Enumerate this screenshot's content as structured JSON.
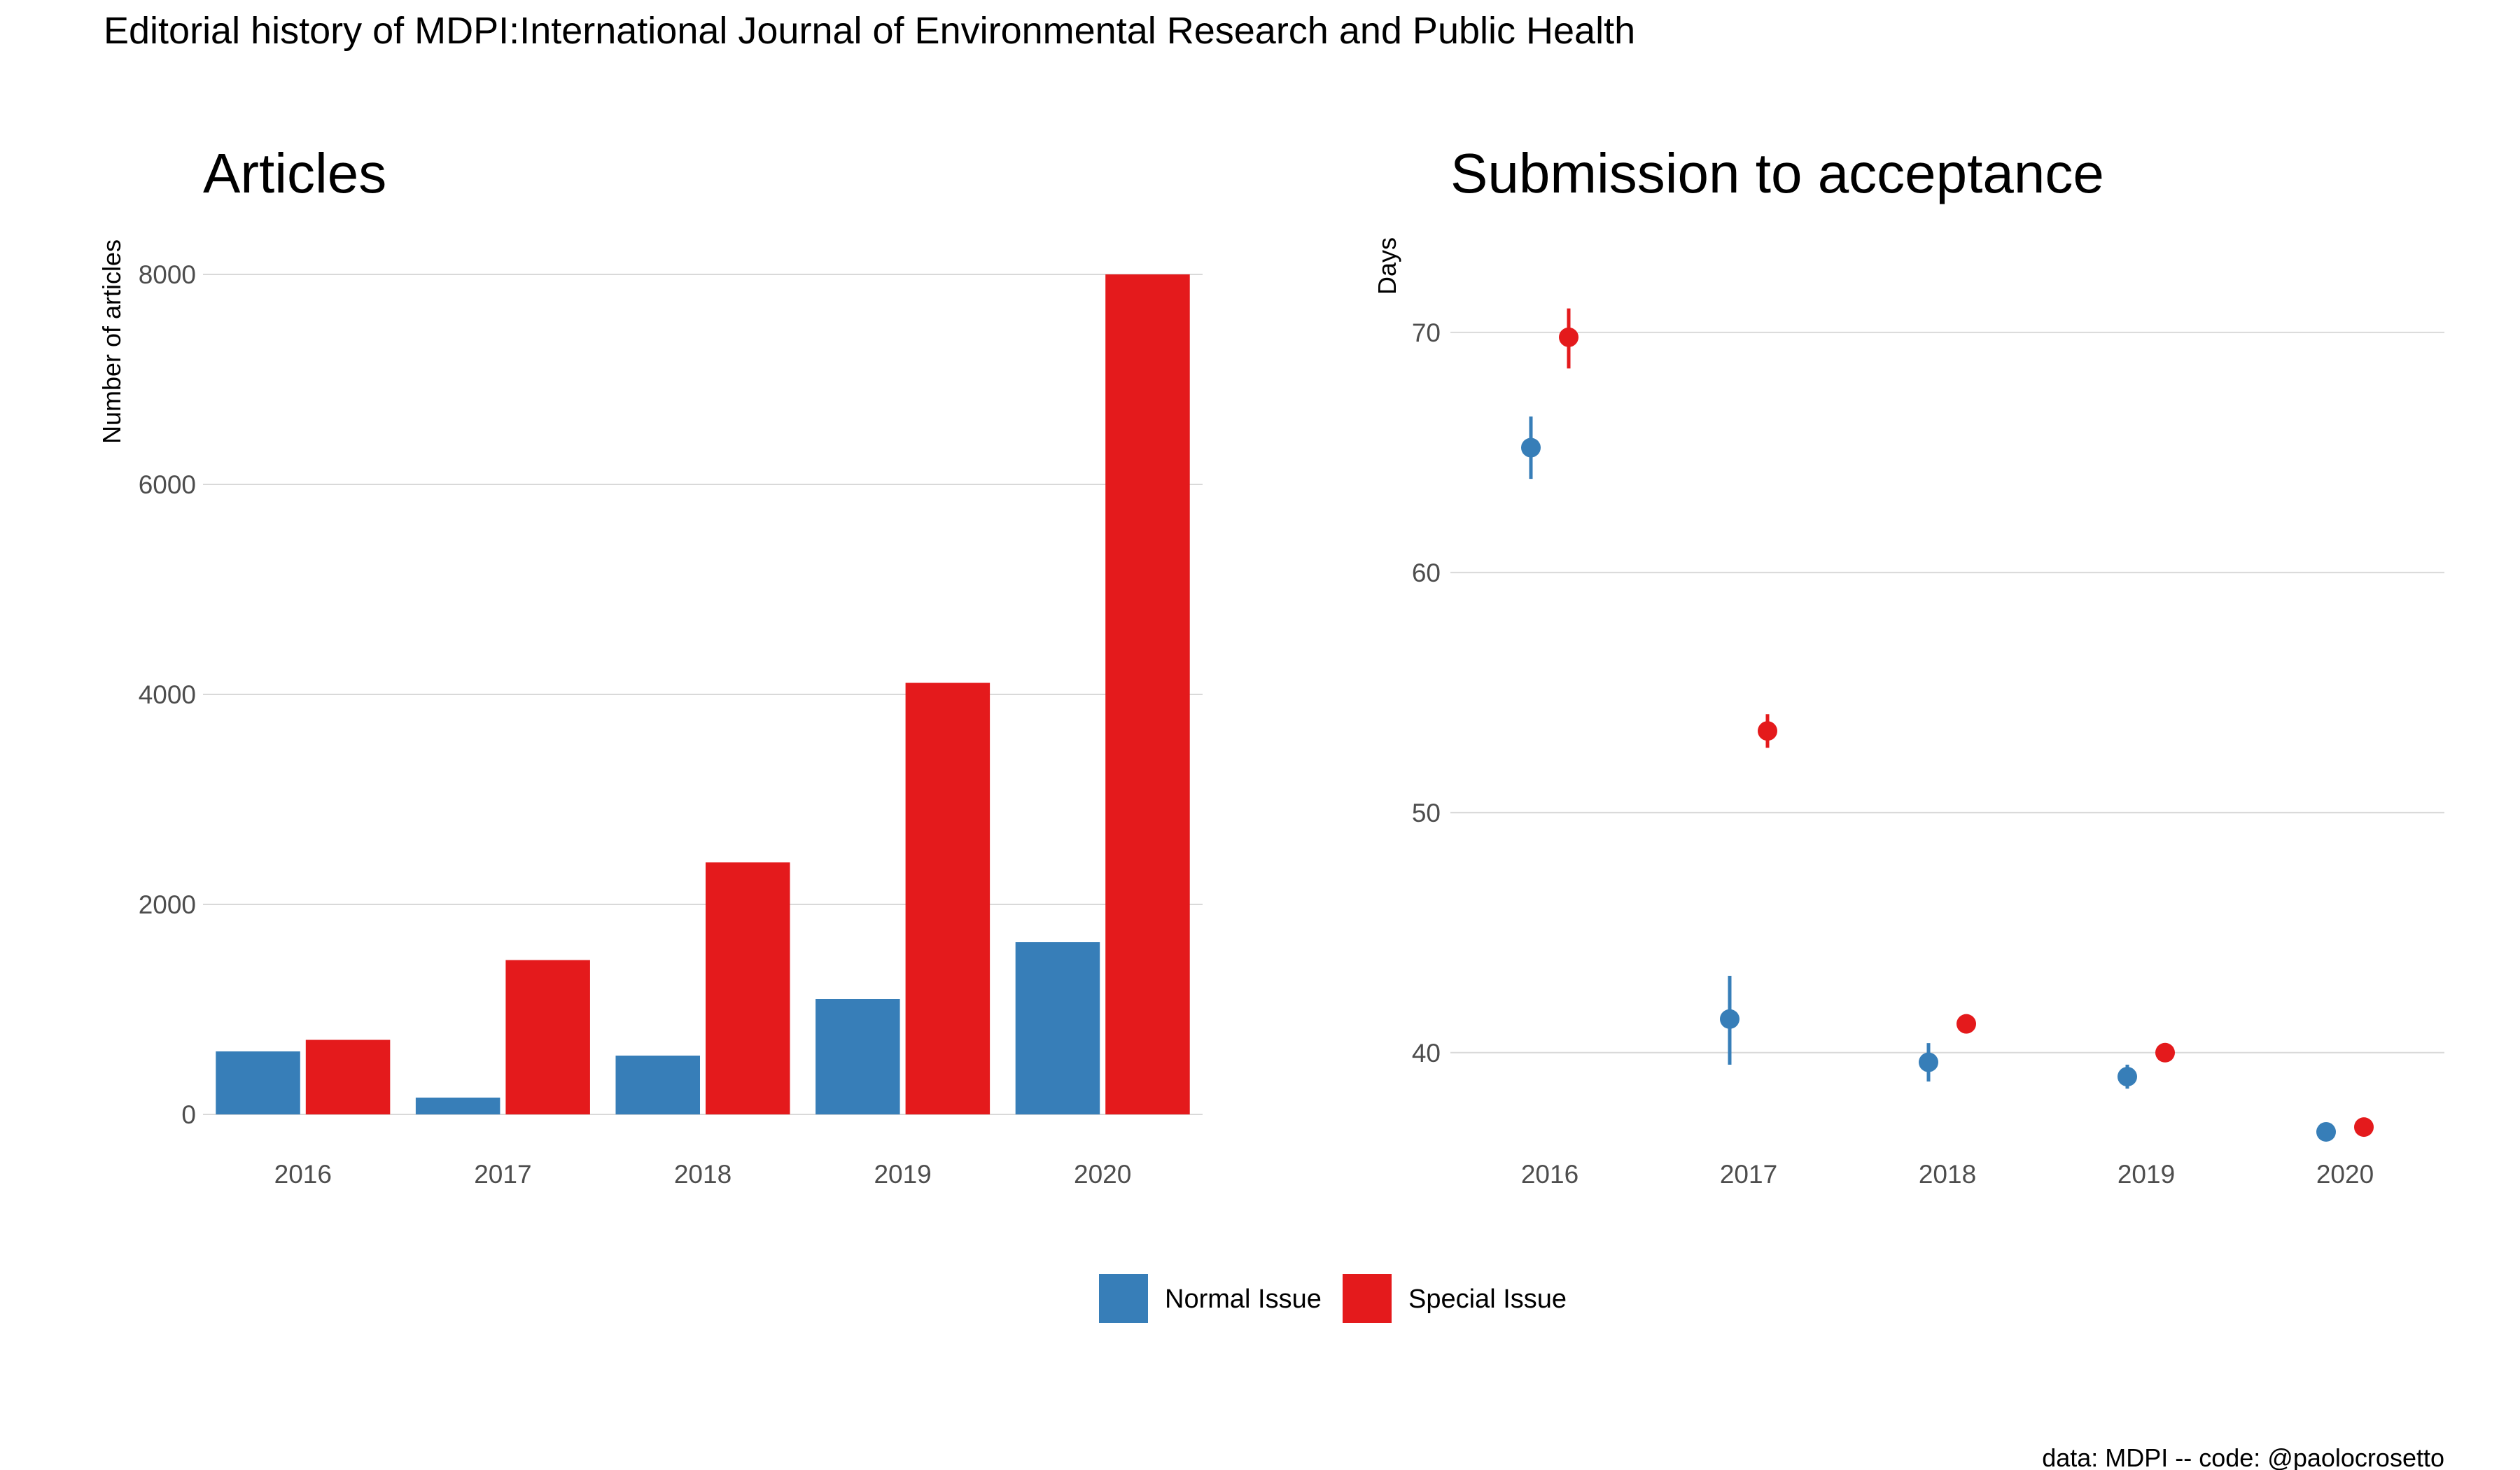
{
  "title": "Editorial history of MDPI:International Journal of Environmental Research and Public Health",
  "caption": "data: MDPI -- code: @paolocrosetto",
  "colors": {
    "normal": "#377EB8",
    "special": "#E41A1C",
    "grid": "#d9d9d9",
    "tick": "#4d4d4d"
  },
  "legend": {
    "position": "bottom",
    "items": [
      {
        "label": "Normal Issue",
        "color": "#377EB8"
      },
      {
        "label": "Special Issue",
        "color": "#E41A1C"
      }
    ]
  },
  "chart_data": [
    {
      "type": "bar",
      "title": "Articles",
      "xlabel": "",
      "ylabel": "Number of articles",
      "categories": [
        "2016",
        "2017",
        "2018",
        "2019",
        "2020"
      ],
      "ylim": [
        0,
        8000
      ],
      "yticks": [
        0,
        2000,
        4000,
        6000,
        8000
      ],
      "grid": true,
      "series": [
        {
          "name": "Normal Issue",
          "values": [
            600,
            160,
            560,
            1100,
            1640
          ]
        },
        {
          "name": "Special Issue",
          "values": [
            710,
            1470,
            2400,
            4110,
            8000
          ]
        }
      ]
    },
    {
      "type": "scatter",
      "title": "Submission to acceptance",
      "xlabel": "",
      "ylabel": "Days",
      "categories": [
        "2016",
        "2017",
        "2018",
        "2019",
        "2020"
      ],
      "ylim": [
        35.3,
        73.7
      ],
      "yticks": [
        40,
        50,
        60,
        70
      ],
      "grid": true,
      "series": [
        {
          "name": "Normal Issue",
          "values": [
            65.2,
            41.4,
            39.6,
            39.0,
            36.7
          ],
          "lower": [
            63.9,
            39.5,
            38.8,
            38.5,
            36.5
          ],
          "upper": [
            66.5,
            43.2,
            40.4,
            39.5,
            36.9
          ]
        },
        {
          "name": "Special Issue",
          "values": [
            69.8,
            53.4,
            41.2,
            40.0,
            36.9
          ],
          "lower": [
            68.5,
            52.7,
            41.0,
            39.8,
            36.7
          ],
          "upper": [
            71.0,
            54.1,
            41.4,
            40.2,
            37.1
          ]
        }
      ]
    }
  ]
}
